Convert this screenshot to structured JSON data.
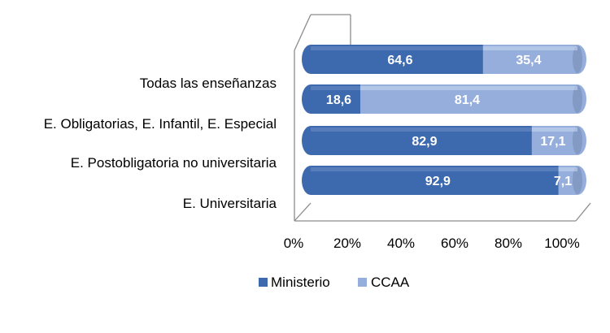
{
  "chart_data": {
    "type": "bar",
    "orientation": "horizontal",
    "stacked": true,
    "percent_stacked": true,
    "style": "3d-cylinder",
    "categories": [
      "Todas las enseñanzas",
      "E. Obligatorias, E. Infantil, E. Especial",
      "E. Postobligatoria no universitaria",
      "E. Universitaria"
    ],
    "series": [
      {
        "name": "Ministerio",
        "color": "#3D6AAE",
        "values": [
          64.6,
          18.6,
          82.9,
          92.9
        ],
        "labels": [
          "64,6",
          "18,6",
          "82,9",
          "92,9"
        ]
      },
      {
        "name": "CCAA",
        "color": "#95AEDB",
        "values": [
          35.4,
          81.4,
          17.1,
          7.1
        ],
        "labels": [
          "35,4",
          "81,4",
          "17,1",
          "7,1"
        ]
      }
    ],
    "x_ticks": [
      "0%",
      "20%",
      "40%",
      "60%",
      "80%",
      "100%"
    ],
    "xlim": [
      0,
      100
    ],
    "grid": false,
    "legend": "bottom"
  }
}
